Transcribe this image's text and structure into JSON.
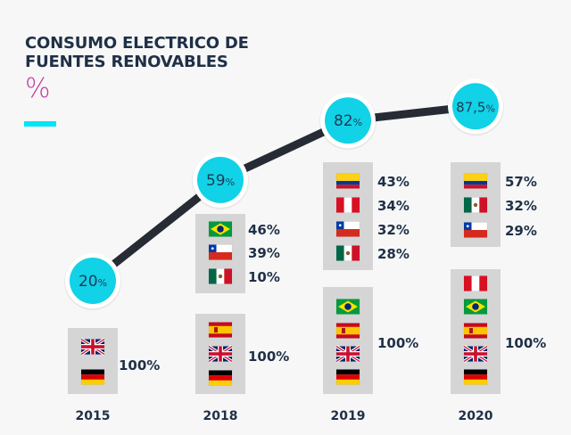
{
  "title_lines": [
    "CONSUMO ELECTRICO DE",
    "FUENTES RENOVABLES"
  ],
  "unit": "%",
  "colors": {
    "line": "#262b34",
    "bubble": "#11d2e6",
    "bubble_ring": "#ffffff",
    "panel": "#d5d5d5",
    "text": "#1f3047",
    "accent_bar": "#00e5f5",
    "unit_symbol": "#c23fa3"
  },
  "chart_data": {
    "type": "line",
    "title": "CONSUMO ELECTRICO DE FUENTES RENOVABLES",
    "ylabel": "%",
    "x": [
      "2015",
      "2018",
      "2019",
      "2020"
    ],
    "series": [
      {
        "values": [
          20,
          59,
          82,
          87.5
        ],
        "labels": [
          "20",
          "59",
          "82",
          "87,5"
        ]
      }
    ],
    "years": [
      {
        "year": "2015",
        "groups": [
          {
            "value": "100%",
            "countries": [
              "uk",
              "germany"
            ]
          }
        ]
      },
      {
        "year": "2018",
        "groups": [
          {
            "countries": [
              "brazil",
              "chile",
              "mexico"
            ],
            "values": [
              "46%",
              "39%",
              "10%"
            ]
          },
          {
            "value": "100%",
            "countries": [
              "spain",
              "uk",
              "germany"
            ]
          }
        ]
      },
      {
        "year": "2019",
        "groups": [
          {
            "countries": [
              "colombia",
              "peru",
              "chile",
              "mexico"
            ],
            "values": [
              "43%",
              "34%",
              "32%",
              "28%"
            ]
          },
          {
            "value": "100%",
            "countries": [
              "brazil",
              "spain",
              "uk",
              "germany"
            ]
          }
        ]
      },
      {
        "year": "2020",
        "groups": [
          {
            "countries": [
              "colombia",
              "mexico",
              "chile"
            ],
            "values": [
              "57%",
              "32%",
              "29%"
            ]
          },
          {
            "value": "100%",
            "countries": [
              "peru",
              "brazil",
              "spain",
              "uk",
              "germany"
            ]
          }
        ]
      }
    ]
  }
}
